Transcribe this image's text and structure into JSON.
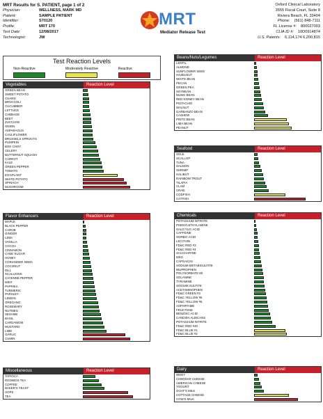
{
  "header": {
    "title": "MRT Results for S. PATIENT, page 1 of 2",
    "fields": [
      {
        "k": "Physician:",
        "v": "WELLNESS, MARK MD"
      },
      {
        "k": "Patient:",
        "v": "SAMPLE PATIENT"
      },
      {
        "k": "Identifier:",
        "v": "S70120"
      },
      {
        "k": "Profile:",
        "v": "MRT 170"
      },
      {
        "k": "Test Date:",
        "v": "12/08/2017"
      },
      {
        "k": "Technologist:",
        "v": "JW"
      }
    ]
  },
  "logo": {
    "brand": "MRT",
    "tagline": "Mediator Release Test"
  },
  "lab": {
    "name": "Oxford Clinical Laboratory",
    "address1": "3555 Fiscal Court, Suite 8",
    "address2": "Riviera Beach, FL 33404",
    "fields": [
      {
        "k": "Phone:",
        "v": "(561) 848-7111"
      },
      {
        "k": "FL License #:",
        "v": "800027003"
      },
      {
        "k": "CLIA ID #:",
        "v": "10D0914874"
      },
      {
        "k": "U.S. Patents:",
        "v": "6,114,174  6,200,815"
      }
    ]
  },
  "legend": {
    "title": "Test Reaction Levels",
    "items": [
      {
        "label": "Non-Reactive",
        "color": "#1b8a2a"
      },
      {
        "label": "Moderately Reactive",
        "color": "#e8e54a"
      },
      {
        "label": "Reactive",
        "color": "#c8202a"
      }
    ]
  },
  "reaction_header": "Reaction Level",
  "sections": [
    {
      "id": "vegetables",
      "name": "Vegetables",
      "items": [
        [
          "GREEN BEAN",
          0.08,
          "g"
        ],
        [
          "SWEET POTATO",
          0.09,
          "g"
        ],
        [
          "CHARD",
          0.1,
          "g"
        ],
        [
          "BROCCOLI",
          0.1,
          "g"
        ],
        [
          "CUCUMBER",
          0.1,
          "g"
        ],
        [
          "LETTUCE",
          0.11,
          "g"
        ],
        [
          "CABBAGE",
          0.12,
          "g"
        ],
        [
          "BEET",
          0.13,
          "g"
        ],
        [
          "ZUCCHINI",
          0.13,
          "g"
        ],
        [
          "ONION",
          0.14,
          "g"
        ],
        [
          "ASPARAGUS",
          0.15,
          "g"
        ],
        [
          "CAULIFLOWER",
          0.16,
          "g"
        ],
        [
          "BRUSSELS SPROUTS",
          0.17,
          "g"
        ],
        [
          "PUMPKIN",
          0.2,
          "g"
        ],
        [
          "BOK CHOY",
          0.22,
          "g"
        ],
        [
          "CELERY",
          0.24,
          "g"
        ],
        [
          "BUTTERNUT SQUASH",
          0.25,
          "g"
        ],
        [
          "CARROT",
          0.28,
          "g"
        ],
        [
          "KALE",
          0.3,
          "g"
        ],
        [
          "GREEN PEPPER",
          0.31,
          "g"
        ],
        [
          "TOMATO",
          0.33,
          "g"
        ],
        [
          "EGGPLANT",
          0.55,
          "y"
        ],
        [
          "WHITE POTATO",
          0.66,
          "r"
        ],
        [
          "SPINACH",
          0.7,
          "r"
        ],
        [
          "MUSHROOM",
          0.75,
          "r"
        ]
      ]
    },
    {
      "id": "flavor-enhancers",
      "name": "Flavor Enhancers",
      "items": [
        [
          "MAPLE",
          0.02,
          "g"
        ],
        [
          "BLACK PEPPER",
          0.04,
          "g"
        ],
        [
          "CAROB",
          0.05,
          "g"
        ],
        [
          "GINGER",
          0.06,
          "g"
        ],
        [
          "LEEK",
          0.06,
          "g"
        ],
        [
          "VANILLA",
          0.07,
          "g"
        ],
        [
          "COCOA",
          0.08,
          "g"
        ],
        [
          "CINNAMON",
          0.09,
          "g"
        ],
        [
          "CANE SUGAR",
          0.1,
          "g"
        ],
        [
          "HONEY",
          0.11,
          "g"
        ],
        [
          "CORIANDER SEED",
          0.12,
          "g"
        ],
        [
          "COCONUT",
          0.13,
          "g"
        ],
        [
          "DILL",
          0.14,
          "g"
        ],
        [
          "SCALLIONS",
          0.15,
          "g"
        ],
        [
          "CAYENNE PEPPER",
          0.17,
          "g"
        ],
        [
          "MINT",
          0.18,
          "g"
        ],
        [
          "PAPRIKA",
          0.19,
          "g"
        ],
        [
          "TURMERIC",
          0.2,
          "g"
        ],
        [
          "PARSLEY",
          0.21,
          "g"
        ],
        [
          "LEMON",
          0.22,
          "g"
        ],
        [
          "OREGANO",
          0.24,
          "g"
        ],
        [
          "ROSEMARY",
          0.25,
          "g"
        ],
        [
          "NUTMEG",
          0.27,
          "g"
        ],
        [
          "SESAME",
          0.29,
          "g"
        ],
        [
          "BASIL",
          0.3,
          "g"
        ],
        [
          "CARDAMOM",
          0.32,
          "g"
        ],
        [
          "MUSTARD",
          0.34,
          "g"
        ],
        [
          "LIME",
          0.38,
          "g"
        ],
        [
          "GARLIC",
          0.68,
          "r"
        ],
        [
          "CUMIN",
          0.75,
          "r"
        ]
      ]
    },
    {
      "id": "miscellaneous",
      "name": "Miscellaneous",
      "items": [
        [
          "TAPIOCA",
          0.2,
          "g"
        ],
        [
          "ROOIBOS TEA",
          0.26,
          "g"
        ],
        [
          "COFFEE",
          0.3,
          "g"
        ],
        [
          "BAKER'S YEAST",
          0.34,
          "g"
        ],
        [
          "HOPS",
          0.72,
          "r"
        ],
        [
          "TEA",
          0.8,
          "r"
        ]
      ]
    },
    {
      "id": "beans",
      "name": "Beans/Nuts/Legumes",
      "items": [
        [
          "LENTIL",
          0.03,
          "g"
        ],
        [
          "ALMOND",
          0.04,
          "g"
        ],
        [
          "SUNFLOWER SEED",
          0.05,
          "g"
        ],
        [
          "HAZELNUT",
          0.06,
          "g"
        ],
        [
          "WHITE BEAN",
          0.07,
          "g"
        ],
        [
          "PECAN",
          0.08,
          "g"
        ],
        [
          "GREEN PEA",
          0.09,
          "g"
        ],
        [
          "SOYBEAN",
          0.1,
          "g"
        ],
        [
          "MUNG BEAN",
          0.11,
          "g"
        ],
        [
          "RED KIDNEY BEAN",
          0.12,
          "g"
        ],
        [
          "PISTACHIO",
          0.14,
          "g"
        ],
        [
          "WALNUT",
          0.16,
          "g"
        ],
        [
          "GARBANZO BEAN",
          0.18,
          "g"
        ],
        [
          "CASHEW",
          0.22,
          "g"
        ],
        [
          "PINTO BEAN",
          0.52,
          "y"
        ],
        [
          "LIMA BEAN",
          0.56,
          "y"
        ],
        [
          "PEANUT",
          0.6,
          "y"
        ]
      ]
    },
    {
      "id": "seafood",
      "name": "Seafood",
      "items": [
        [
          "SOLE",
          0.05,
          "g"
        ],
        [
          "SCALLOP",
          0.07,
          "g"
        ],
        [
          "TUNA",
          0.08,
          "g"
        ],
        [
          "SALMON",
          0.1,
          "g"
        ],
        [
          "SHRIMP",
          0.12,
          "g"
        ],
        [
          "HALIBUT",
          0.14,
          "g"
        ],
        [
          "RAINBOW TROUT",
          0.16,
          "g"
        ],
        [
          "TILAPIA",
          0.18,
          "g"
        ],
        [
          "CLAM",
          0.2,
          "g"
        ],
        [
          "CRAB",
          0.23,
          "g"
        ],
        [
          "CODFISH",
          0.5,
          "y"
        ],
        [
          "CATFISH",
          0.82,
          "r"
        ]
      ]
    },
    {
      "id": "chemicals",
      "name": "Chemicals",
      "items": [
        [
          "POTASSIUM NITRATE",
          0.02,
          "g"
        ],
        [
          "PHENYLETHYLAMINE",
          0.03,
          "g"
        ],
        [
          "SALICYLIC ACID",
          0.04,
          "g"
        ],
        [
          "CAFFEINE",
          0.05,
          "g"
        ],
        [
          "SORBIC ACID",
          0.06,
          "g"
        ],
        [
          "LECITHIN",
          0.07,
          "g"
        ],
        [
          "FD&C RED #3",
          0.08,
          "g"
        ],
        [
          "FD&C RED #4",
          0.08,
          "g"
        ],
        [
          "SACCHARINE",
          0.09,
          "g"
        ],
        [
          "MSG",
          0.1,
          "g"
        ],
        [
          "CAPSAICIN",
          0.11,
          "g"
        ],
        [
          "SODIUM METABISULFITE",
          0.12,
          "g"
        ],
        [
          "IBUPROPHEN",
          0.13,
          "g"
        ],
        [
          "POLYSORBATE 80",
          0.14,
          "g"
        ],
        [
          "SOLANINE",
          0.15,
          "g"
        ],
        [
          "TYRAMINE",
          0.16,
          "g"
        ],
        [
          "SODIUM SULFITE",
          0.17,
          "g"
        ],
        [
          "ACETAMINOPHEN",
          0.18,
          "g"
        ],
        [
          "FD&C GREEN #3",
          0.19,
          "g"
        ],
        [
          "FD&C YELLOW #5",
          0.2,
          "g"
        ],
        [
          "FD&C YELLOW #6",
          0.21,
          "g"
        ],
        [
          "ASPARTAME",
          0.22,
          "g"
        ],
        [
          "FRUCTOSE",
          0.23,
          "g"
        ],
        [
          "BENZOIC ACID",
          0.25,
          "g"
        ],
        [
          "CANDIDA ALBICANS",
          0.27,
          "g"
        ],
        [
          "POTASSIUM NITRITE",
          0.29,
          "g"
        ],
        [
          "FD&C RED #40",
          0.34,
          "g"
        ],
        [
          "FD&C BLUE #1",
          0.5,
          "y"
        ],
        [
          "FD&C BLUE #2",
          0.52,
          "y"
        ]
      ]
    },
    {
      "id": "dairy",
      "name": "Dairy",
      "items": [
        [
          "WHEY",
          0.06,
          "g"
        ],
        [
          "CHEDDAR CHEESE",
          0.08,
          "g"
        ],
        [
          "AMERICAN CHEESE",
          0.1,
          "g"
        ],
        [
          "YOGURT",
          0.12,
          "g"
        ],
        [
          "GOAT'S MILK",
          0.15,
          "g"
        ],
        [
          "COTTAGE CHEESE",
          0.55,
          "y"
        ],
        [
          "COW'S MILK",
          0.7,
          "r"
        ]
      ]
    }
  ]
}
